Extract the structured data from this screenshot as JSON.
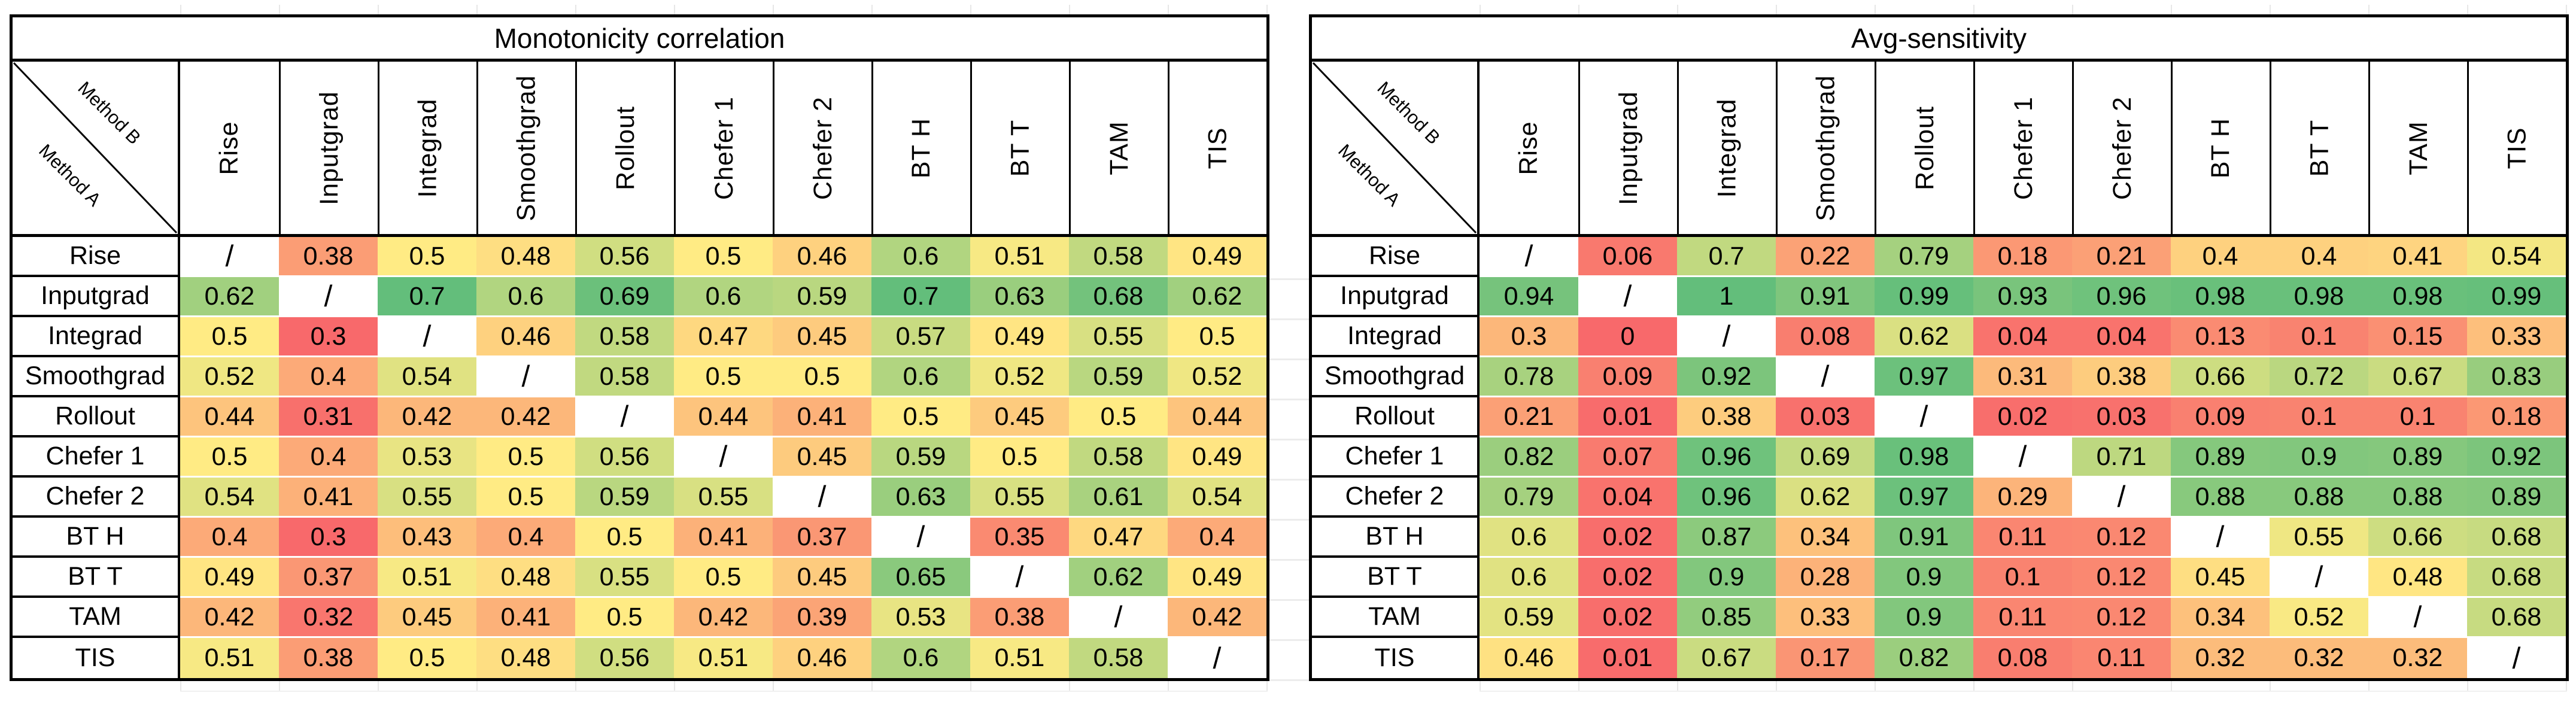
{
  "figure": {
    "background": "#ffffff",
    "colors": {
      "table_border": "#000000",
      "cell_text": "#000000",
      "sheet_gridline": "#e7e7e7",
      "row_separator": "#ffffff"
    }
  },
  "chart_data": [
    {
      "type": "heatmap",
      "title": "Monotonicity correlation",
      "corner_top_label": "Method B",
      "corner_bottom_label": "Method A",
      "diagonal_symbol": "/",
      "columns": [
        "Rise",
        "Inputgrad",
        "Integrad",
        "Smoothgrad",
        "Rollout",
        "Chefer 1",
        "Chefer 2",
        "BT H",
        "BT T",
        "TAM",
        "TIS"
      ],
      "rows": [
        "Rise",
        "Inputgrad",
        "Integrad",
        "Smoothgrad",
        "Rollout",
        "Chefer 1",
        "Chefer 2",
        "BT H",
        "BT T",
        "TAM",
        "TIS"
      ],
      "values": [
        [
          null,
          0.38,
          0.5,
          0.48,
          0.56,
          0.5,
          0.46,
          0.6,
          0.51,
          0.58,
          0.49
        ],
        [
          0.62,
          null,
          0.7,
          0.6,
          0.69,
          0.6,
          0.59,
          0.7,
          0.63,
          0.68,
          0.62
        ],
        [
          0.5,
          0.3,
          null,
          0.46,
          0.58,
          0.47,
          0.45,
          0.57,
          0.49,
          0.55,
          0.5
        ],
        [
          0.52,
          0.4,
          0.54,
          null,
          0.58,
          0.5,
          0.5,
          0.6,
          0.52,
          0.59,
          0.52
        ],
        [
          0.44,
          0.31,
          0.42,
          0.42,
          null,
          0.44,
          0.41,
          0.5,
          0.45,
          0.5,
          0.44
        ],
        [
          0.5,
          0.4,
          0.53,
          0.5,
          0.56,
          null,
          0.45,
          0.59,
          0.5,
          0.58,
          0.49
        ],
        [
          0.54,
          0.41,
          0.55,
          0.5,
          0.59,
          0.55,
          null,
          0.63,
          0.55,
          0.61,
          0.54
        ],
        [
          0.4,
          0.3,
          0.43,
          0.4,
          0.5,
          0.41,
          0.37,
          null,
          0.35,
          0.47,
          0.4
        ],
        [
          0.49,
          0.37,
          0.51,
          0.48,
          0.55,
          0.5,
          0.45,
          0.65,
          null,
          0.62,
          0.49
        ],
        [
          0.42,
          0.32,
          0.45,
          0.41,
          0.5,
          0.42,
          0.39,
          0.53,
          0.38,
          null,
          0.42
        ],
        [
          0.51,
          0.38,
          0.5,
          0.48,
          0.56,
          0.51,
          0.46,
          0.6,
          0.51,
          0.58,
          null
        ]
      ],
      "color_scale": {
        "min_value": 0.3,
        "mid_value": 0.5,
        "max_value": 0.7,
        "min_color": "#F8696B",
        "mid_color": "#FFEB84",
        "max_color": "#63BE7B",
        "null_color": "#FFFFFF"
      }
    },
    {
      "type": "heatmap",
      "title": "Avg-sensitivity",
      "corner_top_label": "Method B",
      "corner_bottom_label": "Method A",
      "diagonal_symbol": "/",
      "columns": [
        "Rise",
        "Inputgrad",
        "Integrad",
        "Smoothgrad",
        "Rollout",
        "Chefer 1",
        "Chefer 2",
        "BT H",
        "BT T",
        "TAM",
        "TIS"
      ],
      "rows": [
        "Rise",
        "Inputgrad",
        "Integrad",
        "Smoothgrad",
        "Rollout",
        "Chefer 1",
        "Chefer 2",
        "BT H",
        "BT T",
        "TAM",
        "TIS"
      ],
      "values": [
        [
          null,
          0.06,
          0.7,
          0.22,
          0.79,
          0.18,
          0.21,
          0.4,
          0.4,
          0.41,
          0.54
        ],
        [
          0.94,
          null,
          1,
          0.91,
          0.99,
          0.93,
          0.96,
          0.98,
          0.98,
          0.98,
          0.99
        ],
        [
          0.3,
          0,
          null,
          0.08,
          0.62,
          0.04,
          0.04,
          0.13,
          0.1,
          0.15,
          0.33
        ],
        [
          0.78,
          0.09,
          0.92,
          null,
          0.97,
          0.31,
          0.38,
          0.66,
          0.72,
          0.67,
          0.83
        ],
        [
          0.21,
          0.01,
          0.38,
          0.03,
          null,
          0.02,
          0.03,
          0.09,
          0.1,
          0.1,
          0.18
        ],
        [
          0.82,
          0.07,
          0.96,
          0.69,
          0.98,
          null,
          0.71,
          0.89,
          0.9,
          0.89,
          0.92
        ],
        [
          0.79,
          0.04,
          0.96,
          0.62,
          0.97,
          0.29,
          null,
          0.88,
          0.88,
          0.88,
          0.89
        ],
        [
          0.6,
          0.02,
          0.87,
          0.34,
          0.91,
          0.11,
          0.12,
          null,
          0.55,
          0.66,
          0.68
        ],
        [
          0.6,
          0.02,
          0.9,
          0.28,
          0.9,
          0.1,
          0.12,
          0.45,
          null,
          0.48,
          0.68
        ],
        [
          0.59,
          0.02,
          0.85,
          0.33,
          0.9,
          0.11,
          0.12,
          0.34,
          0.52,
          null,
          0.68
        ],
        [
          0.46,
          0.01,
          0.67,
          0.17,
          0.82,
          0.08,
          0.11,
          0.32,
          0.32,
          0.32,
          null
        ]
      ],
      "color_scale": {
        "min_value": 0,
        "mid_value": 0.5,
        "max_value": 1,
        "min_color": "#F8696B",
        "mid_color": "#FFEB84",
        "max_color": "#63BE7B",
        "null_color": "#FFFFFF"
      }
    }
  ]
}
